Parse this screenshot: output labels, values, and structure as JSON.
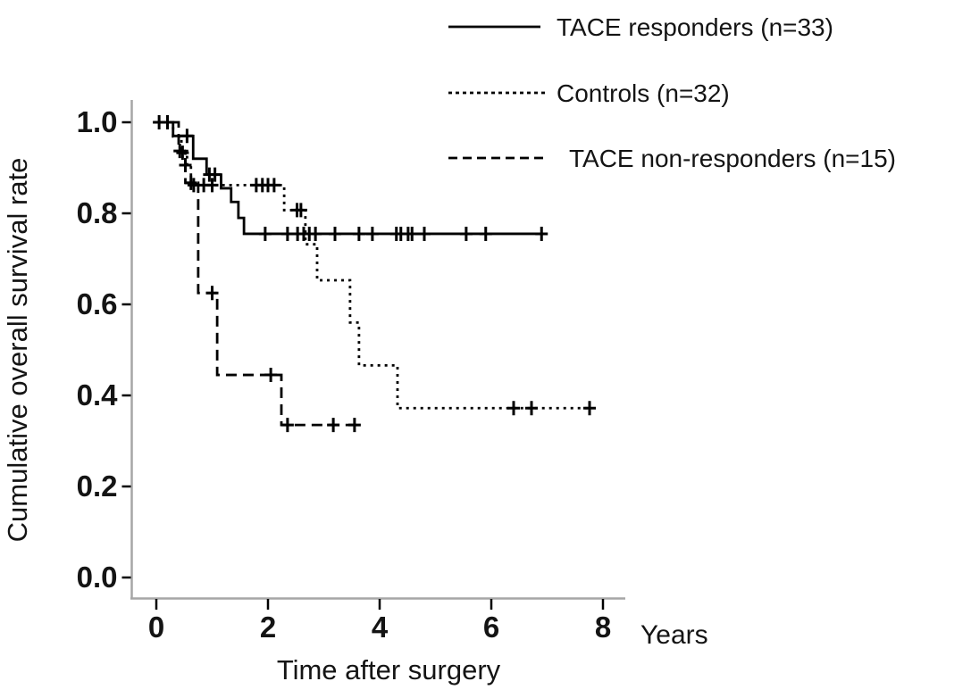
{
  "colors": {
    "background": "#ffffff",
    "curves": "#000000",
    "axis_line": "#a6a6a6",
    "text": "#141414"
  },
  "chart_data": {
    "type": "line",
    "subtype": "kaplan-meier-step",
    "title": "",
    "xlabel": "Time after surgery",
    "x_unit_label": "Years",
    "ylabel": "Cumulative overall survival rate",
    "x_ticks": [
      "0",
      "2",
      "4",
      "6",
      "8"
    ],
    "y_ticks": [
      "1.0",
      "0.8",
      "0.6",
      "0.4",
      "0.2",
      "0.0"
    ],
    "xlim": [
      0,
      8.4
    ],
    "ylim": [
      0.0,
      1.0
    ],
    "grid": false,
    "legend_position": "top-right-outside",
    "series": [
      {
        "name": "TACE responders (n=33)",
        "line_style": "solid",
        "steps": [
          [
            0,
            1.0
          ],
          [
            0.3,
            0.97
          ],
          [
            0.66,
            0.92
          ],
          [
            0.9,
            0.885
          ],
          [
            1.16,
            0.855
          ],
          [
            1.34,
            0.825
          ],
          [
            1.47,
            0.79
          ],
          [
            1.57,
            0.755
          ]
        ],
        "end_x": 7.0,
        "censor_marks": [
          [
            0.05,
            1.0
          ],
          [
            0.2,
            1.0
          ],
          [
            0.55,
            0.97
          ],
          [
            0.95,
            0.885
          ],
          [
            1.05,
            0.885
          ],
          [
            1.95,
            0.755
          ],
          [
            2.35,
            0.755
          ],
          [
            2.53,
            0.755
          ],
          [
            2.64,
            0.755
          ],
          [
            2.74,
            0.755
          ],
          [
            2.85,
            0.755
          ],
          [
            3.2,
            0.755
          ],
          [
            3.63,
            0.755
          ],
          [
            3.87,
            0.755
          ],
          [
            4.3,
            0.755
          ],
          [
            4.38,
            0.755
          ],
          [
            4.51,
            0.755
          ],
          [
            4.58,
            0.755
          ],
          [
            4.8,
            0.755
          ],
          [
            5.55,
            0.755
          ],
          [
            5.9,
            0.755
          ],
          [
            6.9,
            0.755
          ]
        ]
      },
      {
        "name": "Controls (n=32)",
        "line_style": "dotted",
        "steps": [
          [
            0,
            1.0
          ],
          [
            0.3,
            0.969
          ],
          [
            0.45,
            0.937
          ],
          [
            0.55,
            0.906
          ],
          [
            0.62,
            0.862
          ],
          [
            2.29,
            0.807
          ],
          [
            2.67,
            0.732
          ],
          [
            2.88,
            0.653
          ],
          [
            3.47,
            0.56
          ],
          [
            3.63,
            0.466
          ],
          [
            4.32,
            0.372
          ]
        ],
        "end_x": 7.8,
        "censor_marks": [
          [
            0.42,
            0.937
          ],
          [
            0.52,
            0.906
          ],
          [
            0.67,
            0.862
          ],
          [
            0.85,
            0.862
          ],
          [
            1.0,
            0.862
          ],
          [
            1.79,
            0.862
          ],
          [
            1.9,
            0.862
          ],
          [
            2.0,
            0.862
          ],
          [
            2.11,
            0.862
          ],
          [
            2.52,
            0.807
          ],
          [
            2.59,
            0.807
          ],
          [
            6.4,
            0.372
          ],
          [
            6.72,
            0.372
          ],
          [
            7.76,
            0.372
          ]
        ]
      },
      {
        "name": "TACE non-responders (n=15)",
        "line_style": "dashed",
        "steps": [
          [
            0,
            1.0
          ],
          [
            0.4,
            0.933
          ],
          [
            0.52,
            0.867
          ],
          [
            0.75,
            0.625
          ],
          [
            1.09,
            0.445
          ],
          [
            2.24,
            0.335
          ]
        ],
        "end_x": 3.65,
        "censor_marks": [
          [
            0.47,
            0.933
          ],
          [
            0.62,
            0.867
          ],
          [
            1.0,
            0.625
          ],
          [
            2.05,
            0.445
          ],
          [
            2.35,
            0.335
          ],
          [
            3.17,
            0.335
          ],
          [
            3.55,
            0.335
          ]
        ]
      }
    ]
  }
}
